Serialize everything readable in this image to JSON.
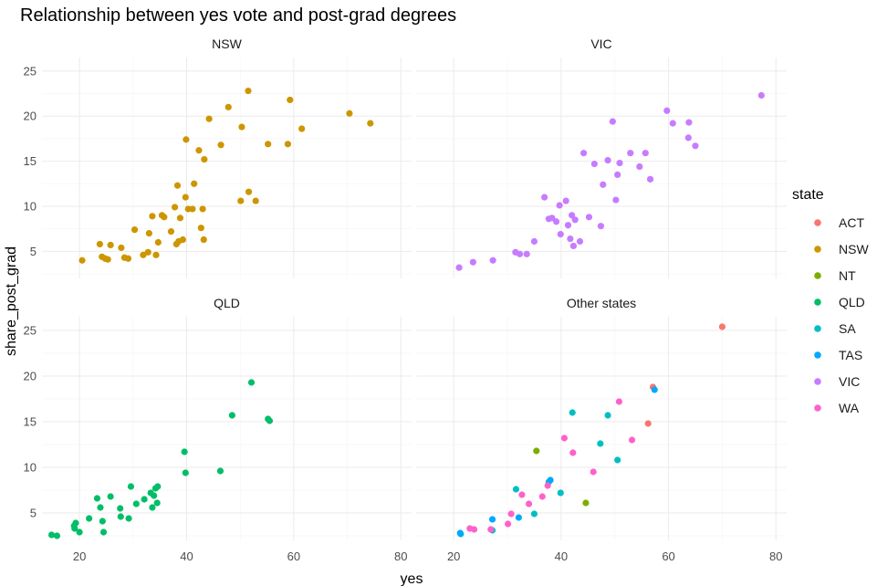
{
  "chart_data": {
    "type": "scatter",
    "title": "Relationship between yes vote and post-grad degrees",
    "xlabel": "yes",
    "ylabel": "share_post_grad",
    "xlim": [
      13,
      82
    ],
    "ylim": [
      2,
      26.5
    ],
    "x_ticks": [
      20,
      40,
      60,
      80
    ],
    "y_ticks": [
      5,
      10,
      15,
      20,
      25
    ],
    "grid": true,
    "legend": {
      "title": "state",
      "position": "right",
      "entries": [
        {
          "name": "ACT",
          "color": "#F8766D"
        },
        {
          "name": "NSW",
          "color": "#CD9600"
        },
        {
          "name": "NT",
          "color": "#7CAE00"
        },
        {
          "name": "QLD",
          "color": "#00BE67"
        },
        {
          "name": "SA",
          "color": "#00BFC4"
        },
        {
          "name": "TAS",
          "color": "#00A9FF"
        },
        {
          "name": "VIC",
          "color": "#C77CFF"
        },
        {
          "name": "WA",
          "color": "#FF61CC"
        }
      ]
    },
    "panels": [
      {
        "name": "NSW",
        "series": [
          {
            "state": "NSW",
            "points": [
              [
                20.5,
                4.0
              ],
              [
                23.8,
                5.8
              ],
              [
                24.2,
                4.4
              ],
              [
                24.8,
                4.2
              ],
              [
                25.3,
                4.1
              ],
              [
                25.8,
                5.7
              ],
              [
                27.8,
                5.4
              ],
              [
                28.4,
                4.3
              ],
              [
                29.1,
                4.2
              ],
              [
                30.3,
                7.4
              ],
              [
                31.9,
                4.6
              ],
              [
                32.8,
                4.9
              ],
              [
                33.0,
                7.0
              ],
              [
                33.6,
                8.9
              ],
              [
                34.3,
                4.6
              ],
              [
                34.7,
                6.0
              ],
              [
                35.4,
                9.0
              ],
              [
                35.8,
                8.8
              ],
              [
                37.1,
                7.2
              ],
              [
                37.8,
                9.9
              ],
              [
                38.1,
                5.8
              ],
              [
                38.3,
                12.3
              ],
              [
                38.5,
                6.1
              ],
              [
                38.8,
                8.7
              ],
              [
                39.3,
                6.3
              ],
              [
                39.8,
                11.0
              ],
              [
                39.9,
                17.4
              ],
              [
                40.3,
                9.7
              ],
              [
                41.1,
                9.7
              ],
              [
                41.4,
                12.5
              ],
              [
                42.3,
                16.2
              ],
              [
                42.7,
                7.6
              ],
              [
                43.0,
                9.7
              ],
              [
                43.2,
                6.3
              ],
              [
                43.3,
                15.2
              ],
              [
                44.2,
                19.7
              ],
              [
                46.4,
                16.8
              ],
              [
                47.8,
                21.0
              ],
              [
                50.1,
                10.6
              ],
              [
                50.3,
                18.8
              ],
              [
                51.5,
                22.8
              ],
              [
                51.6,
                11.6
              ],
              [
                52.9,
                10.6
              ],
              [
                55.2,
                16.9
              ],
              [
                58.9,
                16.9
              ],
              [
                59.3,
                21.8
              ],
              [
                61.5,
                18.6
              ],
              [
                70.4,
                20.3
              ],
              [
                74.3,
                19.2
              ]
            ]
          }
        ]
      },
      {
        "name": "VIC",
        "series": [
          {
            "state": "VIC",
            "points": [
              [
                21.0,
                3.2
              ],
              [
                23.6,
                3.8
              ],
              [
                27.3,
                4.0
              ],
              [
                31.5,
                4.9
              ],
              [
                32.3,
                4.7
              ],
              [
                33.6,
                4.7
              ],
              [
                35.0,
                6.1
              ],
              [
                36.9,
                11.0
              ],
              [
                37.7,
                8.6
              ],
              [
                38.3,
                8.7
              ],
              [
                39.1,
                8.3
              ],
              [
                39.7,
                10.1
              ],
              [
                39.9,
                6.9
              ],
              [
                40.9,
                10.6
              ],
              [
                41.3,
                7.9
              ],
              [
                41.7,
                6.4
              ],
              [
                42.0,
                9.0
              ],
              [
                42.3,
                5.6
              ],
              [
                42.6,
                8.5
              ],
              [
                43.5,
                6.1
              ],
              [
                44.2,
                15.9
              ],
              [
                45.2,
                8.8
              ],
              [
                46.2,
                14.7
              ],
              [
                47.4,
                7.8
              ],
              [
                47.8,
                12.4
              ],
              [
                48.7,
                15.1
              ],
              [
                49.6,
                19.4
              ],
              [
                50.2,
                10.7
              ],
              [
                50.5,
                13.5
              ],
              [
                50.9,
                14.8
              ],
              [
                52.9,
                15.9
              ],
              [
                54.6,
                14.4
              ],
              [
                55.7,
                15.9
              ],
              [
                56.6,
                13.0
              ],
              [
                59.7,
                20.6
              ],
              [
                60.8,
                19.2
              ],
              [
                63.8,
                19.3
              ],
              [
                63.7,
                17.6
              ],
              [
                65.0,
                16.7
              ],
              [
                77.3,
                22.3
              ]
            ]
          }
        ]
      },
      {
        "name": "QLD",
        "series": [
          {
            "state": "QLD",
            "points": [
              [
                14.8,
                2.6
              ],
              [
                15.8,
                2.5
              ],
              [
                19.0,
                3.6
              ],
              [
                19.1,
                3.3
              ],
              [
                19.3,
                3.9
              ],
              [
                20.0,
                2.9
              ],
              [
                21.8,
                4.4
              ],
              [
                23.3,
                6.6
              ],
              [
                23.9,
                5.6
              ],
              [
                24.3,
                4.1
              ],
              [
                24.5,
                2.9
              ],
              [
                25.8,
                6.8
              ],
              [
                27.6,
                5.5
              ],
              [
                27.7,
                4.6
              ],
              [
                29.2,
                4.4
              ],
              [
                29.6,
                7.9
              ],
              [
                30.6,
                6.0
              ],
              [
                32.1,
                6.5
              ],
              [
                33.3,
                7.2
              ],
              [
                33.6,
                5.6
              ],
              [
                33.9,
                6.9
              ],
              [
                34.2,
                7.7
              ],
              [
                34.5,
                6.1
              ],
              [
                34.6,
                7.9
              ],
              [
                39.6,
                11.7
              ],
              [
                39.8,
                9.4
              ],
              [
                46.3,
                9.6
              ],
              [
                48.5,
                15.7
              ],
              [
                52.1,
                19.3
              ],
              [
                55.2,
                15.3
              ],
              [
                55.5,
                15.1
              ]
            ]
          }
        ]
      },
      {
        "name": "Other states",
        "series": [
          {
            "state": "ACT",
            "points": [
              [
                56.2,
                14.8
              ],
              [
                57.1,
                18.8
              ],
              [
                70.0,
                25.4
              ]
            ]
          },
          {
            "state": "NT",
            "points": [
              [
                35.4,
                11.8
              ],
              [
                44.6,
                6.1
              ]
            ]
          },
          {
            "state": "SA",
            "points": [
              [
                21.3,
                2.7
              ],
              [
                27.2,
                3.1
              ],
              [
                31.6,
                7.6
              ],
              [
                35.0,
                4.9
              ],
              [
                37.7,
                8.4
              ],
              [
                39.9,
                7.2
              ],
              [
                42.1,
                16.0
              ],
              [
                47.3,
                12.6
              ],
              [
                48.7,
                15.7
              ],
              [
                50.5,
                10.8
              ]
            ]
          },
          {
            "state": "TAS",
            "points": [
              [
                21.2,
                2.8
              ],
              [
                27.2,
                4.3
              ],
              [
                32.1,
                4.5
              ],
              [
                38.0,
                8.6
              ],
              [
                57.4,
                18.5
              ]
            ]
          },
          {
            "state": "WA",
            "points": [
              [
                23.0,
                3.3
              ],
              [
                23.8,
                3.2
              ],
              [
                26.9,
                3.2
              ],
              [
                30.1,
                3.8
              ],
              [
                30.7,
                4.9
              ],
              [
                32.7,
                7.0
              ],
              [
                34.0,
                6.0
              ],
              [
                36.5,
                6.8
              ],
              [
                37.5,
                8.0
              ],
              [
                40.6,
                13.2
              ],
              [
                42.2,
                11.6
              ],
              [
                46.0,
                9.5
              ],
              [
                50.8,
                17.2
              ],
              [
                53.2,
                13.0
              ]
            ]
          }
        ]
      }
    ]
  }
}
